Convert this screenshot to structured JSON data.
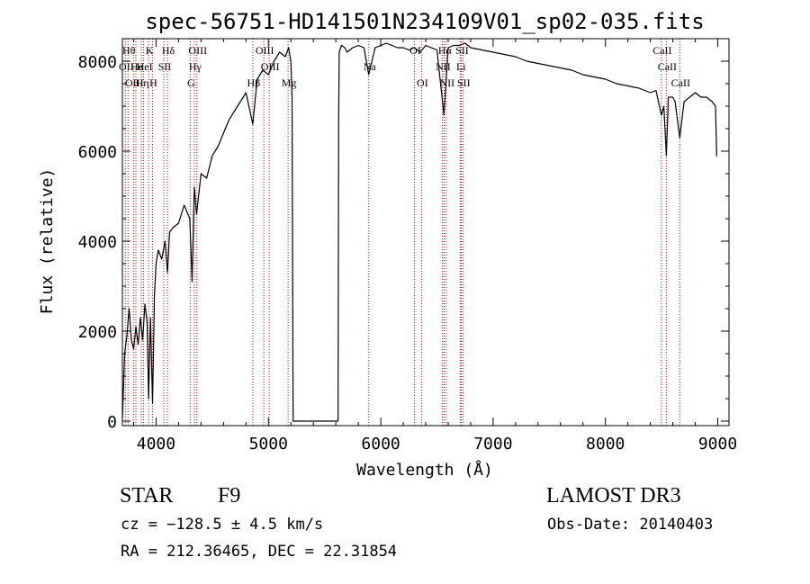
{
  "chart_data": {
    "type": "line",
    "title": "spec-56751-HD141501N234109V01_sp02-035.fits",
    "xlabel": "Wavelength (Å)",
    "ylabel": "Flux (relative)",
    "xlim": [
      3700,
      9100
    ],
    "ylim": [
      -100,
      8500
    ],
    "xticks": [
      4000,
      5000,
      6000,
      7000,
      8000,
      9000
    ],
    "yticks": [
      0,
      2000,
      4000,
      6000,
      8000
    ],
    "grid": false,
    "series": [
      {
        "x": [
          3700,
          3720,
          3740,
          3760,
          3780,
          3800,
          3820,
          3840,
          3860,
          3880,
          3900,
          3920,
          3933,
          3950,
          3968,
          3985,
          4000,
          4020,
          4050,
          4080,
          4101,
          4120,
          4150,
          4200,
          4250,
          4300,
          4320,
          4340,
          4360,
          4400,
          4450,
          4500,
          4550,
          4600,
          4650,
          4700,
          4750,
          4800,
          4861,
          4900,
          4950,
          5000,
          5050,
          5100,
          5150,
          5180,
          5200,
          5210,
          5220,
          5230,
          5620,
          5625,
          5630,
          5650,
          5680,
          5700,
          5750,
          5800,
          5850,
          5893,
          5950,
          6000,
          6050,
          6100,
          6150,
          6200,
          6250,
          6300,
          6350,
          6400,
          6450,
          6500,
          6563,
          6600,
          6650,
          6700,
          6750,
          6800,
          6900,
          7000,
          7100,
          7200,
          7300,
          7400,
          7500,
          7600,
          7700,
          7800,
          7900,
          8000,
          8100,
          8200,
          8300,
          8400,
          8450,
          8498,
          8520,
          8542,
          8560,
          8600,
          8620,
          8662,
          8700,
          8750,
          8800,
          8850,
          8900,
          8950,
          8980,
          8990,
          8995
        ],
        "y": [
          50,
          1500,
          1900,
          2500,
          1800,
          1600,
          2100,
          1700,
          2300,
          1800,
          2600,
          2200,
          500,
          2300,
          400,
          2800,
          3500,
          3800,
          3600,
          4000,
          3300,
          4200,
          4300,
          4400,
          4800,
          4500,
          3100,
          5200,
          4600,
          5500,
          5400,
          5900,
          6100,
          6400,
          6700,
          6900,
          7100,
          7300,
          6600,
          7600,
          7800,
          7700,
          8000,
          8200,
          8100,
          8300,
          8000,
          7200,
          0,
          0,
          0,
          6700,
          8200,
          8350,
          8300,
          8200,
          8300,
          8350,
          8300,
          7700,
          8300,
          8350,
          8400,
          8350,
          8300,
          8300,
          8250,
          8300,
          8200,
          8350,
          8300,
          8250,
          6800,
          8300,
          8350,
          8350,
          8400,
          8300,
          8250,
          8200,
          8150,
          8100,
          8000,
          7950,
          7900,
          7850,
          7800,
          7700,
          7650,
          7600,
          7500,
          7450,
          7400,
          7300,
          7350,
          6800,
          7000,
          5900,
          7200,
          7200,
          7100,
          6300,
          7100,
          7200,
          7300,
          7200,
          7200,
          7100,
          7000,
          5900,
          5900
        ]
      }
    ],
    "lines": [
      {
        "x": 3727,
        "label": "OII",
        "row": 1
      },
      {
        "x": 3750,
        "label": "Hθ",
        "row": 0
      },
      {
        "x": 3799,
        "label": "OIII",
        "row": 2
      },
      {
        "x": 3820,
        "label": "He",
        "row": 1
      },
      {
        "x": 3869,
        "label": "Hη",
        "row": 2
      },
      {
        "x": 3889,
        "label": "HeI",
        "row": 1
      },
      {
        "x": 3933,
        "label": "K",
        "row": 0
      },
      {
        "x": 3968,
        "label": "H",
        "row": 2
      },
      {
        "x": 4068,
        "label": "SII",
        "row": 1
      },
      {
        "x": 4101,
        "label": "Hδ",
        "row": 0
      },
      {
        "x": 4304,
        "label": "G",
        "row": 2
      },
      {
        "x": 4340,
        "label": "Hγ",
        "row": 1
      },
      {
        "x": 4363,
        "label": "OIII",
        "row": 0
      },
      {
        "x": 4861,
        "label": "Hβ",
        "row": 2
      },
      {
        "x": 4959,
        "label": "OIII",
        "row": 0
      },
      {
        "x": 5007,
        "label": "OIII",
        "row": 1
      },
      {
        "x": 5175,
        "label": "Mg",
        "row": 2
      },
      {
        "x": 5893,
        "label": "Na",
        "row": 1
      },
      {
        "x": 6300,
        "label": "OI",
        "row": 0
      },
      {
        "x": 6363,
        "label": "OI",
        "row": 2
      },
      {
        "x": 6548,
        "label": "NII",
        "row": 1
      },
      {
        "x": 6563,
        "label": "Hα",
        "row": 0
      },
      {
        "x": 6583,
        "label": "NII",
        "row": 2
      },
      {
        "x": 6707,
        "label": "Li",
        "row": 1
      },
      {
        "x": 6716,
        "label": "SII",
        "row": 0
      },
      {
        "x": 6731,
        "label": "SII",
        "row": 2
      },
      {
        "x": 8498,
        "label": "CaII",
        "row": 0
      },
      {
        "x": 8542,
        "label": "CaII",
        "row": 1
      },
      {
        "x": 8662,
        "label": "CaII",
        "row": 2
      }
    ]
  },
  "info": {
    "object_type": "STAR",
    "subclass": "F9",
    "survey": "LAMOST DR3",
    "cz": "cz = −128.5 ± 4.5 km/s",
    "obs_date": "Obs-Date: 20140403",
    "radec": "RA = 212.36465, DEC =  22.31854"
  },
  "colors": {
    "spectrum": "#000000",
    "line_markers": "#cc0000",
    "axes": "#000000"
  }
}
